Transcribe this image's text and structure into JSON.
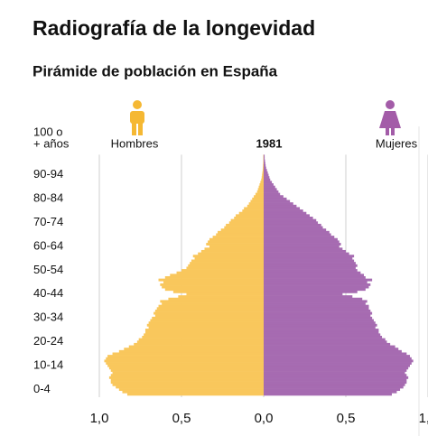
{
  "chart_data": {
    "type": "pyramid",
    "title": "Radiografía de la longevidad",
    "subtitle": "Pirámide de población en España",
    "year": "1981",
    "top_label": [
      "100 o",
      "+ años"
    ],
    "categories": [
      null,
      null,
      "0-4",
      null,
      null,
      null,
      null,
      null,
      null,
      null,
      null,
      null,
      "10-14",
      null,
      null,
      null,
      null,
      null,
      null,
      null,
      null,
      null,
      "20-24",
      null,
      null,
      null,
      null,
      null,
      null,
      null,
      null,
      null,
      "30-34",
      null,
      null,
      null,
      null,
      null,
      null,
      null,
      null,
      null,
      "40-44",
      null,
      null,
      null,
      null,
      null,
      null,
      null,
      null,
      null,
      "50-54",
      null,
      null,
      null,
      null,
      null,
      null,
      null,
      null,
      null,
      "60-64",
      null,
      null,
      null,
      null,
      null,
      null,
      null,
      null,
      null,
      "70-74",
      null,
      null,
      null,
      null,
      null,
      null,
      null,
      null,
      null,
      "80-84",
      null,
      null,
      null,
      null,
      null,
      null,
      null,
      null,
      null,
      "90-94",
      null,
      null,
      null,
      null,
      null,
      null,
      null,
      null
    ],
    "series": [
      {
        "name": "Hombres",
        "side": "left",
        "color": "#f9c75c",
        "values": [
          0.83,
          0.86,
          0.88,
          0.9,
          0.92,
          0.93,
          0.93,
          0.94,
          0.93,
          0.92,
          0.93,
          0.94,
          0.95,
          0.96,
          0.97,
          0.96,
          0.95,
          0.92,
          0.88,
          0.85,
          0.82,
          0.79,
          0.77,
          0.76,
          0.74,
          0.73,
          0.72,
          0.72,
          0.7,
          0.71,
          0.7,
          0.69,
          0.68,
          0.66,
          0.67,
          0.66,
          0.65,
          0.64,
          0.62,
          0.63,
          0.58,
          0.52,
          0.47,
          0.55,
          0.6,
          0.62,
          0.63,
          0.61,
          0.64,
          0.6,
          0.57,
          0.53,
          0.5,
          0.47,
          0.46,
          0.45,
          0.44,
          0.42,
          0.43,
          0.4,
          0.38,
          0.36,
          0.33,
          0.35,
          0.34,
          0.33,
          0.31,
          0.29,
          0.28,
          0.26,
          0.24,
          0.23,
          0.21,
          0.2,
          0.18,
          0.17,
          0.15,
          0.13,
          0.12,
          0.1,
          0.09,
          0.08,
          0.07,
          0.06,
          0.05,
          0.04,
          0.035,
          0.03,
          0.025,
          0.02,
          0.015,
          0.012,
          0.01,
          0.008,
          0.006,
          0.005,
          0.004,
          0.003,
          0.002,
          0.002,
          0.002
        ]
      },
      {
        "name": "Mujeres",
        "side": "right",
        "color": "#a66bb1",
        "values": [
          0.78,
          0.81,
          0.83,
          0.85,
          0.86,
          0.87,
          0.87,
          0.88,
          0.87,
          0.86,
          0.87,
          0.88,
          0.89,
          0.9,
          0.91,
          0.9,
          0.89,
          0.87,
          0.84,
          0.82,
          0.8,
          0.77,
          0.75,
          0.74,
          0.72,
          0.71,
          0.7,
          0.7,
          0.68,
          0.69,
          0.68,
          0.67,
          0.66,
          0.65,
          0.66,
          0.65,
          0.64,
          0.64,
          0.62,
          0.63,
          0.6,
          0.54,
          0.48,
          0.57,
          0.62,
          0.64,
          0.65,
          0.63,
          0.66,
          0.62,
          0.61,
          0.59,
          0.57,
          0.56,
          0.57,
          0.56,
          0.55,
          0.54,
          0.55,
          0.52,
          0.5,
          0.48,
          0.46,
          0.47,
          0.46,
          0.45,
          0.43,
          0.41,
          0.4,
          0.38,
          0.36,
          0.35,
          0.33,
          0.32,
          0.3,
          0.28,
          0.26,
          0.24,
          0.22,
          0.2,
          0.18,
          0.16,
          0.14,
          0.12,
          0.1,
          0.09,
          0.08,
          0.07,
          0.06,
          0.05,
          0.04,
          0.035,
          0.03,
          0.025,
          0.02,
          0.015,
          0.012,
          0.01,
          0.008,
          0.006,
          0.006
        ]
      }
    ],
    "xlim": [
      0,
      1
    ],
    "xticks": [
      {
        "value": 0,
        "label": "0,0"
      },
      {
        "value": 0.5,
        "label": "0,5"
      },
      {
        "value": 1,
        "label": "1,0"
      }
    ],
    "grid": true
  }
}
